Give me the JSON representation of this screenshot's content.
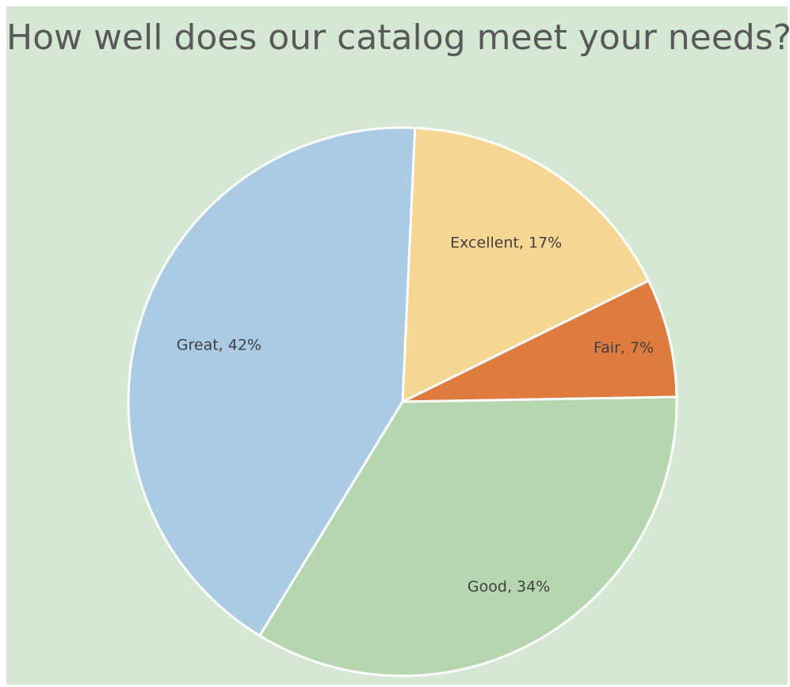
{
  "chart_data": {
    "type": "pie",
    "title": "How well does our catalog meet your needs?",
    "legend": "none",
    "slices": [
      {
        "label": "Fair",
        "value": 7,
        "color": "#e07b3f",
        "data_label": "Fair, 7%"
      },
      {
        "label": "Excellent",
        "value": 17,
        "color": "#f6d693",
        "data_label": "Excellent, 17%"
      },
      {
        "label": "Great",
        "value": 42,
        "color": "#abcae4",
        "data_label": "Great, 42%"
      },
      {
        "label": "Good",
        "value": 34,
        "color": "#b6d6b0",
        "data_label": "Good, 34%"
      }
    ]
  },
  "colors": {
    "background": "#d5e8d4",
    "title": "#595959",
    "label": "#404040",
    "slice_border": "#ffffff"
  }
}
